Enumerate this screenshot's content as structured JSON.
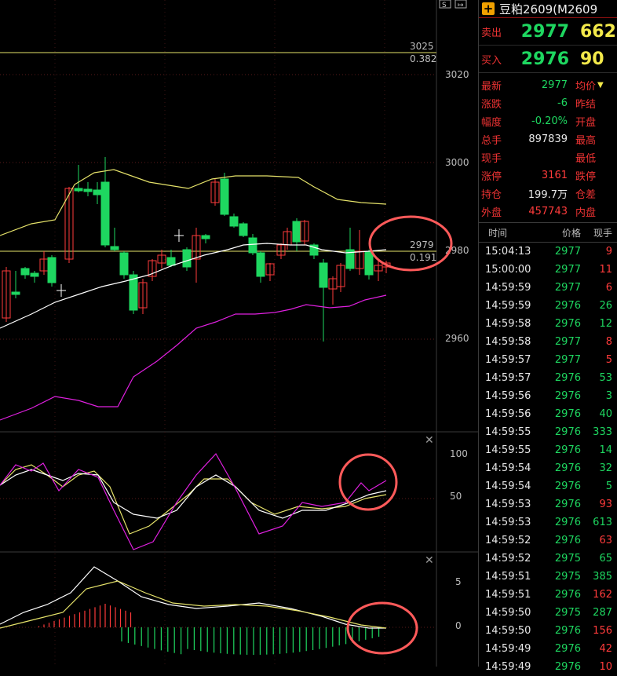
{
  "window": {
    "top_icons": [
      "S",
      "↦"
    ]
  },
  "price_axis": [
    "3020",
    "3000",
    "2980",
    "2960"
  ],
  "fib_levels": [
    {
      "price": "3025",
      "ratio": "0.382"
    },
    {
      "price": "2979",
      "ratio": "0.191"
    }
  ],
  "kdj_axis": [
    "100",
    "50"
  ],
  "macd_axis": [
    "5",
    "0"
  ],
  "panel": {
    "title": "豆粕2609(M2609",
    "sell": {
      "label": "卖出",
      "price": "2977",
      "volume": "662"
    },
    "buy": {
      "label": "买入",
      "price": "2976",
      "volume": "90"
    },
    "stats": [
      {
        "label": "最新",
        "value": "2977",
        "color": "green",
        "label2": "均价",
        "arrow": "▼"
      },
      {
        "label": "涨跌",
        "value": "-6",
        "color": "green",
        "label2": "昨结"
      },
      {
        "label": "幅度",
        "value": "-0.20%",
        "color": "green",
        "label2": "开盘"
      },
      {
        "label": "总手",
        "value": "897839",
        "color": "white",
        "label2": "最高"
      },
      {
        "label": "现手",
        "value": "",
        "color": "white",
        "label2": "最低"
      },
      {
        "label": "涨停",
        "value": "3161",
        "color": "red",
        "label2": "跌停"
      },
      {
        "label": "持仓",
        "value": "199.7万",
        "color": "white",
        "label2": "仓差"
      },
      {
        "label": "外盘",
        "value": "457743",
        "color": "red",
        "label2": "内盘"
      }
    ],
    "tick_headers": {
      "time": "时间",
      "price": "价格",
      "volume": "现手"
    },
    "ticks": [
      {
        "time": "15:04:13",
        "price": "2977",
        "volume": "9",
        "vcolor": "red"
      },
      {
        "time": "15:00:00",
        "price": "2977",
        "volume": "11",
        "vcolor": "red"
      },
      {
        "time": "14:59:59",
        "price": "2977",
        "volume": "6",
        "vcolor": "red"
      },
      {
        "time": "14:59:59",
        "price": "2976",
        "volume": "26",
        "vcolor": "green"
      },
      {
        "time": "14:59:58",
        "price": "2976",
        "volume": "12",
        "vcolor": "green"
      },
      {
        "time": "14:59:58",
        "price": "2977",
        "volume": "8",
        "vcolor": "red"
      },
      {
        "time": "14:59:57",
        "price": "2977",
        "volume": "5",
        "vcolor": "red"
      },
      {
        "time": "14:59:57",
        "price": "2976",
        "volume": "53",
        "vcolor": "green"
      },
      {
        "time": "14:59:56",
        "price": "2976",
        "volume": "3",
        "vcolor": "green"
      },
      {
        "time": "14:59:56",
        "price": "2976",
        "volume": "40",
        "vcolor": "green"
      },
      {
        "time": "14:59:55",
        "price": "2976",
        "volume": "333",
        "vcolor": "green"
      },
      {
        "time": "14:59:55",
        "price": "2976",
        "volume": "14",
        "vcolor": "green"
      },
      {
        "time": "14:59:54",
        "price": "2976",
        "volume": "32",
        "vcolor": "green"
      },
      {
        "time": "14:59:54",
        "price": "2976",
        "volume": "5",
        "vcolor": "green"
      },
      {
        "time": "14:59:53",
        "price": "2976",
        "volume": "93",
        "vcolor": "red"
      },
      {
        "time": "14:59:53",
        "price": "2976",
        "volume": "613",
        "vcolor": "green"
      },
      {
        "time": "14:59:52",
        "price": "2976",
        "volume": "63",
        "vcolor": "red"
      },
      {
        "time": "14:59:52",
        "price": "2975",
        "volume": "65",
        "vcolor": "green"
      },
      {
        "time": "14:59:51",
        "price": "2975",
        "volume": "385",
        "vcolor": "green"
      },
      {
        "time": "14:59:51",
        "price": "2976",
        "volume": "162",
        "vcolor": "red"
      },
      {
        "time": "14:59:50",
        "price": "2975",
        "volume": "287",
        "vcolor": "green"
      },
      {
        "time": "14:59:50",
        "price": "2976",
        "volume": "156",
        "vcolor": "red"
      },
      {
        "time": "14:59:49",
        "price": "2976",
        "volume": "42",
        "vcolor": "red"
      },
      {
        "time": "14:59:49",
        "price": "2976",
        "volume": "10",
        "vcolor": "red"
      }
    ]
  },
  "colors": {
    "up": "#ff3b3b",
    "down": "#1ed760",
    "ma_yellow": "#e6e36a",
    "ma_white": "#ffffff",
    "ma_magenta": "#e020e0",
    "highlight_circle": "#ff5a5a",
    "bg": "#000000"
  }
}
